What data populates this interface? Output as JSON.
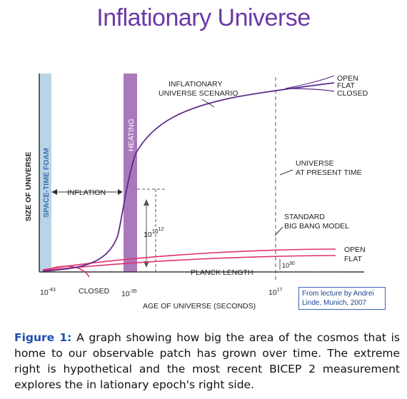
{
  "title": "Inflationary Universe",
  "labels": {
    "y_axis": "SIZE OF UNIVERSE",
    "x_axis": "AGE OF UNIVERSE (SECONDS)",
    "foam": "SPACE-TIME FOAM",
    "heating": "HEATING",
    "inflationary_line1": "INFLATIONARY",
    "inflationary_line2": "UNIVERSE SCENARIO",
    "open_top": "OPEN",
    "flat_top": "FLAT",
    "closed_top": "CLOSED",
    "present_line1": "UNIVERSE",
    "present_line2": "AT PRESENT TIME",
    "inflation": "INFLATION",
    "standard_line1": "STANDARD",
    "standard_line2": "BIG BANG MODEL",
    "open_bottom": "OPEN",
    "flat_bottom": "FLAT",
    "planck": "PLANCK LENGTH",
    "ratio_base": "10",
    "ratio_exp1": "10",
    "ratio_exp2": "12",
    "small_ratio_base": "10",
    "small_ratio_exp": "30",
    "closed_bottom": "CLOSED"
  },
  "ticks": {
    "t1_base": "10",
    "t1_exp": "-43",
    "t2_base": "10",
    "t2_exp": "-35",
    "t3_base": "10",
    "t3_exp": "17"
  },
  "credit": {
    "line1": "From lecture by Andrei",
    "line2": "Linde, Munich, 2007"
  },
  "caption": {
    "label": "Figure 1:",
    "text": " A graph showing how big the area of the cosmos that is home to our observable patch has grown over time. The extreme right is hypothetical and the most recent BICEP 2 measurement explores the in lationary epoch's right side."
  },
  "colors": {
    "title": "#6a3aa5",
    "inflation_curve": "#5b2a8c",
    "bigbang_curve": "#e0306a",
    "heating_band": "#9b62b0",
    "foam_band": "#b9d4e6",
    "caption_label": "#1f4fb0"
  }
}
